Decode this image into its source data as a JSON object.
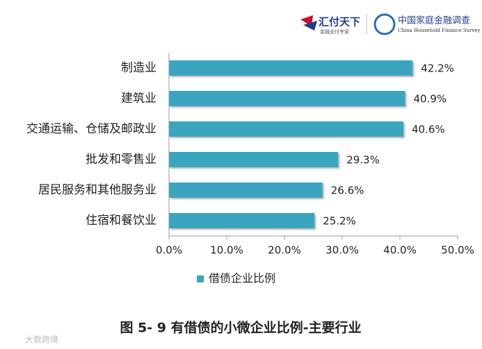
{
  "header": {
    "brand1": "汇付天下",
    "brand1_sub": "金融支付专家",
    "brand2": "中国家庭金融调查",
    "brand2_sub": "China Household Finance Survey"
  },
  "chart_data": {
    "type": "bar",
    "orientation": "horizontal",
    "categories": [
      "制造业",
      "建筑业",
      "交通运输、仓储及邮政业",
      "批发和零售业",
      "居民服务和其他服务业",
      "住宿和餐饮业"
    ],
    "series": [
      {
        "name": "借债企业比例",
        "color": "#3aa5bf",
        "values": [
          42.2,
          40.9,
          40.6,
          29.3,
          26.6,
          25.2
        ],
        "value_labels": [
          "42.2%",
          "40.9%",
          "40.6%",
          "29.3%",
          "26.6%",
          "25.2%"
        ]
      }
    ],
    "xlim": [
      0,
      50
    ],
    "xticks": [
      {
        "value": 0,
        "label": "0.0%"
      },
      {
        "value": 10,
        "label": "10.0%"
      },
      {
        "value": 20,
        "label": "20.0%"
      },
      {
        "value": 30,
        "label": "30.0%"
      },
      {
        "value": 40,
        "label": "40.0%"
      },
      {
        "value": 50,
        "label": "50.0%"
      }
    ],
    "legend": "bottom",
    "caption": "图 5- 9 有借债的小微企业比例-主要行业"
  },
  "watermark": "大数跨境"
}
